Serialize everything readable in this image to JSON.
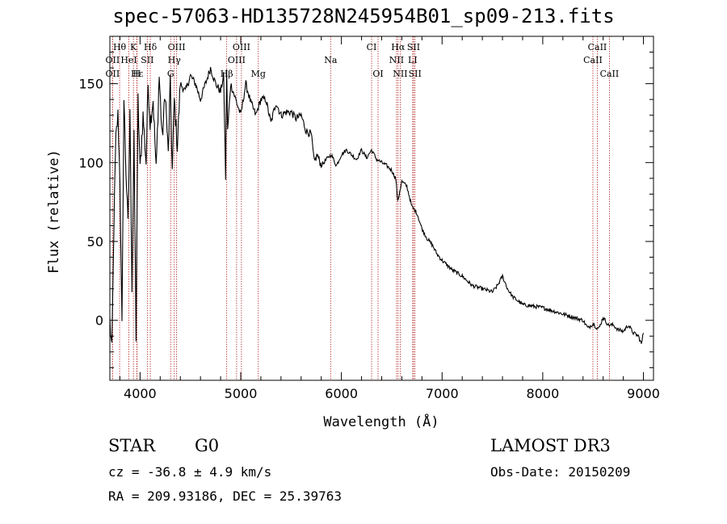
{
  "chart_data": {
    "type": "line",
    "title": "spec-57063-HD135728N245954B01_sp09-213.fits",
    "xlabel": "Wavelength (Å)",
    "ylabel": "Flux (relative)",
    "xlim": [
      3700,
      9100
    ],
    "ylim": [
      -38,
      180
    ],
    "xticks": [
      4000,
      5000,
      6000,
      7000,
      8000,
      9000
    ],
    "yticks": [
      0,
      50,
      100,
      150
    ],
    "series": [
      {
        "name": "flux",
        "x": [
          3700,
          3720,
          3740,
          3760,
          3780,
          3800,
          3820,
          3840,
          3860,
          3880,
          3900,
          3920,
          3940,
          3960,
          3980,
          4000,
          4030,
          4060,
          4080,
          4100,
          4130,
          4160,
          4190,
          4220,
          4250,
          4280,
          4300,
          4320,
          4340,
          4370,
          4400,
          4450,
          4500,
          4550,
          4600,
          4650,
          4700,
          4750,
          4800,
          4830,
          4850,
          4860,
          4870,
          4900,
          4950,
          5000,
          5050,
          5100,
          5150,
          5200,
          5250,
          5300,
          5350,
          5400,
          5450,
          5500,
          5550,
          5600,
          5650,
          5700,
          5730,
          5760,
          5800,
          5850,
          5900,
          5950,
          6000,
          6050,
          6100,
          6150,
          6200,
          6250,
          6300,
          6350,
          6400,
          6450,
          6500,
          6540,
          6560,
          6580,
          6600,
          6650,
          6700,
          6750,
          6800,
          6850,
          6900,
          6950,
          7000,
          7100,
          7200,
          7300,
          7400,
          7500,
          7550,
          7600,
          7650,
          7700,
          7800,
          7900,
          8000,
          8100,
          8200,
          8300,
          8400,
          8450,
          8500,
          8540,
          8560,
          8600,
          8650,
          8700,
          8750,
          8800,
          8850,
          8900,
          8950,
          8980,
          9000
        ],
        "values": [
          0,
          -20,
          60,
          115,
          130,
          90,
          -5,
          140,
          95,
          60,
          130,
          20,
          115,
          -10,
          140,
          95,
          130,
          100,
          150,
          125,
          140,
          95,
          155,
          115,
          145,
          105,
          150,
          95,
          140,
          110,
          150,
          145,
          155,
          150,
          140,
          150,
          160,
          150,
          145,
          155,
          90,
          160,
          120,
          150,
          140,
          130,
          150,
          138,
          130,
          140,
          140,
          125,
          138,
          130,
          132,
          132,
          128,
          130,
          120,
          118,
          100,
          105,
          98,
          102,
          105,
          98,
          105,
          108,
          105,
          102,
          108,
          103,
          108,
          102,
          100,
          98,
          95,
          90,
          75,
          82,
          88,
          85,
          72,
          68,
          58,
          52,
          48,
          42,
          38,
          32,
          28,
          22,
          20,
          18,
          22,
          28,
          20,
          15,
          10,
          9,
          8,
          6,
          4,
          2,
          0,
          -5,
          -2,
          -5,
          -5,
          2,
          -3,
          -3,
          -6,
          -7,
          -3,
          -8,
          -10,
          -15,
          -8
        ]
      }
    ],
    "spectral_lines": [
      {
        "label": "Hθ",
        "x": 3797,
        "row": 1
      },
      {
        "label": "K",
        "x": 3934,
        "row": 1
      },
      {
        "label": "Hδ",
        "x": 4102,
        "row": 1
      },
      {
        "label": "OIII",
        "x": 4363,
        "row": 1
      },
      {
        "label": "OIII",
        "x": 5007,
        "row": 1
      },
      {
        "label": "CI",
        "x": 6300,
        "row": 1
      },
      {
        "label": "Hα",
        "x": 6563,
        "row": 1
      },
      {
        "label": "SII",
        "x": 6717,
        "row": 1
      },
      {
        "label": "CaII",
        "x": 8542,
        "row": 1
      },
      {
        "label": "OII",
        "x": 3727,
        "row": 2
      },
      {
        "label": "HeI",
        "x": 3889,
        "row": 2
      },
      {
        "label": "SII",
        "x": 4072,
        "row": 2
      },
      {
        "label": "Hγ",
        "x": 4340,
        "row": 2
      },
      {
        "label": "OIII",
        "x": 4959,
        "row": 2
      },
      {
        "label": "Na",
        "x": 5893,
        "row": 2
      },
      {
        "label": "NII",
        "x": 6548,
        "row": 2
      },
      {
        "label": "LI",
        "x": 6708,
        "row": 2
      },
      {
        "label": "CaII",
        "x": 8498,
        "row": 2
      },
      {
        "label": "OII",
        "x": 3727,
        "row": 3
      },
      {
        "label": "Hε",
        "x": 3970,
        "row": 3
      },
      {
        "label": "H",
        "x": 3968,
        "row": 3
      },
      {
        "label": "G",
        "x": 4304,
        "row": 3
      },
      {
        "label": "Hβ",
        "x": 4861,
        "row": 3
      },
      {
        "label": "Mg",
        "x": 5175,
        "row": 3
      },
      {
        "label": "OI",
        "x": 6364,
        "row": 3
      },
      {
        "label": "NII",
        "x": 6584,
        "row": 3
      },
      {
        "label": "SII",
        "x": 6731,
        "row": 3
      },
      {
        "label": "CaII",
        "x": 8662,
        "row": 3
      }
    ]
  },
  "info": {
    "object_class": "STAR",
    "subclass": "G0",
    "survey": "LAMOST DR3",
    "cz": "cz = -36.8 ± 4.9 km/s",
    "obs_date": "Obs-Date: 20150209",
    "coords": "RA = 209.93186, DEC =  25.39763"
  }
}
